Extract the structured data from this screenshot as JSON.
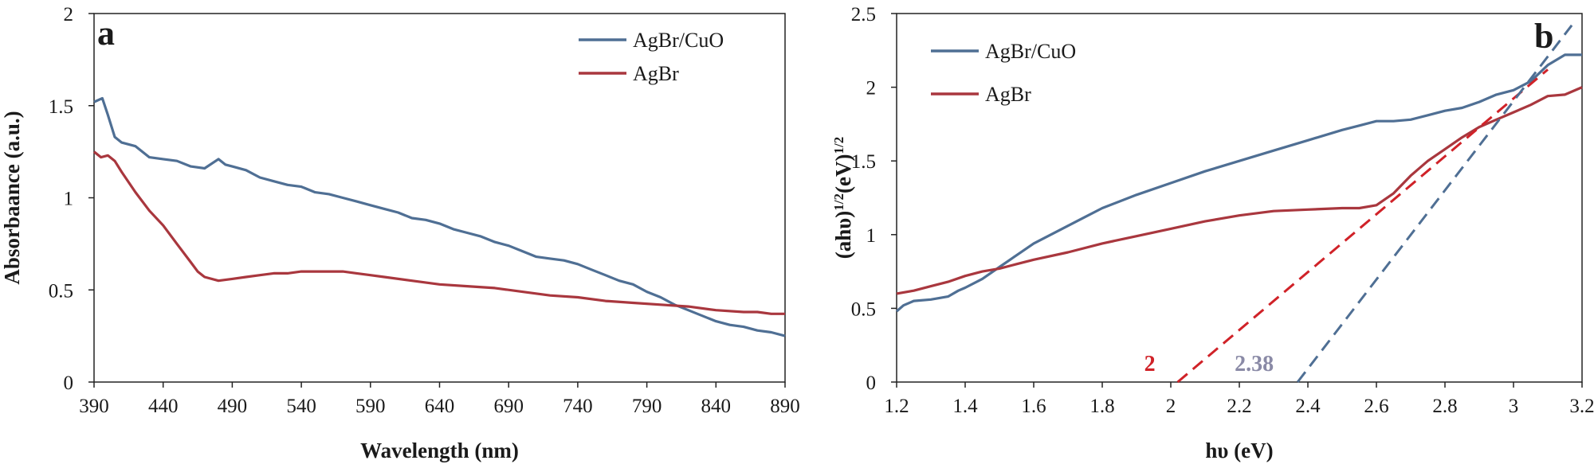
{
  "chart_data": [
    {
      "type": "line",
      "panel_label": "a",
      "xlabel": "Wavelength (nm)",
      "ylabel": "Absorbaance (a.u.)",
      "xlim": [
        390,
        890
      ],
      "ylim": [
        0,
        2
      ],
      "xticks": [
        "390",
        "440",
        "490",
        "540",
        "590",
        "640",
        "690",
        "740",
        "790",
        "840",
        "890"
      ],
      "yticks": [
        "0",
        "0.5",
        "1",
        "1.5",
        "2"
      ],
      "legend_position": "top-right",
      "series": [
        {
          "name": "AgBr/CuO",
          "color": "#4f6f94",
          "x": [
            390,
            396,
            400,
            405,
            410,
            420,
            430,
            440,
            450,
            460,
            470,
            480,
            485,
            490,
            500,
            510,
            520,
            530,
            540,
            550,
            560,
            570,
            580,
            590,
            600,
            610,
            620,
            630,
            640,
            650,
            660,
            670,
            680,
            690,
            700,
            710,
            720,
            730,
            740,
            750,
            760,
            770,
            780,
            790,
            800,
            810,
            820,
            830,
            840,
            850,
            860,
            870,
            880,
            890
          ],
          "y": [
            1.52,
            1.54,
            1.45,
            1.33,
            1.3,
            1.28,
            1.22,
            1.21,
            1.2,
            1.17,
            1.16,
            1.21,
            1.18,
            1.17,
            1.15,
            1.11,
            1.09,
            1.07,
            1.06,
            1.03,
            1.02,
            1.0,
            0.98,
            0.96,
            0.94,
            0.92,
            0.89,
            0.88,
            0.86,
            0.83,
            0.81,
            0.79,
            0.76,
            0.74,
            0.71,
            0.68,
            0.67,
            0.66,
            0.64,
            0.61,
            0.58,
            0.55,
            0.53,
            0.49,
            0.46,
            0.42,
            0.39,
            0.36,
            0.33,
            0.31,
            0.3,
            0.28,
            0.27,
            0.25
          ]
        },
        {
          "name": "AgBr",
          "color": "#a9373e",
          "x": [
            390,
            395,
            400,
            405,
            410,
            420,
            430,
            440,
            450,
            460,
            465,
            470,
            480,
            490,
            500,
            510,
            520,
            530,
            540,
            550,
            560,
            570,
            580,
            590,
            600,
            620,
            640,
            660,
            680,
            700,
            720,
            740,
            760,
            780,
            800,
            820,
            840,
            860,
            870,
            880,
            890
          ],
          "y": [
            1.25,
            1.22,
            1.23,
            1.2,
            1.14,
            1.03,
            0.93,
            0.85,
            0.75,
            0.65,
            0.6,
            0.57,
            0.55,
            0.56,
            0.57,
            0.58,
            0.59,
            0.59,
            0.6,
            0.6,
            0.6,
            0.6,
            0.59,
            0.58,
            0.57,
            0.55,
            0.53,
            0.52,
            0.51,
            0.49,
            0.47,
            0.46,
            0.44,
            0.43,
            0.42,
            0.41,
            0.39,
            0.38,
            0.38,
            0.37,
            0.37
          ]
        }
      ]
    },
    {
      "type": "line",
      "panel_label": "b",
      "xlabel": "hυ (eV)",
      "ylabel": "(ahυ)",
      "ylabel_sup1": "1/2",
      "ylabel_mid": "(eV)",
      "ylabel_sup2": "1/2",
      "xlim": [
        1.2,
        3.2
      ],
      "ylim": [
        0,
        2.5
      ],
      "xticks": [
        "1.2",
        "1.4",
        "1.6",
        "1.8",
        "2",
        "2.2",
        "2.4",
        "2.6",
        "2.8",
        "3",
        "3.2"
      ],
      "yticks": [
        "0",
        "0.5",
        "1",
        "1.5",
        "2",
        "2.5"
      ],
      "legend_position": "top-left",
      "series": [
        {
          "name": "AgBr/CuO",
          "color": "#4f6f94",
          "x": [
            1.2,
            1.22,
            1.25,
            1.3,
            1.35,
            1.38,
            1.4,
            1.45,
            1.5,
            1.55,
            1.6,
            1.65,
            1.7,
            1.75,
            1.8,
            1.9,
            2.0,
            2.1,
            2.2,
            2.3,
            2.4,
            2.5,
            2.55,
            2.6,
            2.65,
            2.7,
            2.75,
            2.8,
            2.85,
            2.9,
            2.95,
            3.0,
            3.05,
            3.1,
            3.15,
            3.2
          ],
          "y": [
            0.48,
            0.52,
            0.55,
            0.56,
            0.58,
            0.62,
            0.64,
            0.7,
            0.78,
            0.86,
            0.94,
            1.0,
            1.06,
            1.12,
            1.18,
            1.27,
            1.35,
            1.43,
            1.5,
            1.57,
            1.64,
            1.71,
            1.74,
            1.77,
            1.77,
            1.78,
            1.81,
            1.84,
            1.86,
            1.9,
            1.95,
            1.98,
            2.04,
            2.15,
            2.22,
            2.22
          ]
        },
        {
          "name": "AgBr",
          "color": "#a9373e",
          "x": [
            1.2,
            1.25,
            1.3,
            1.35,
            1.4,
            1.45,
            1.5,
            1.55,
            1.6,
            1.7,
            1.8,
            1.9,
            2.0,
            2.1,
            2.2,
            2.3,
            2.4,
            2.5,
            2.55,
            2.6,
            2.65,
            2.7,
            2.75,
            2.8,
            2.85,
            2.9,
            2.95,
            3.0,
            3.05,
            3.1,
            3.15,
            3.2
          ],
          "y": [
            0.6,
            0.62,
            0.65,
            0.68,
            0.72,
            0.75,
            0.77,
            0.8,
            0.83,
            0.88,
            0.94,
            0.99,
            1.04,
            1.09,
            1.13,
            1.16,
            1.17,
            1.18,
            1.18,
            1.2,
            1.28,
            1.4,
            1.5,
            1.58,
            1.66,
            1.73,
            1.78,
            1.83,
            1.88,
            1.94,
            1.95,
            2.0
          ]
        }
      ],
      "tangents": [
        {
          "label": "2",
          "color": "#d02228",
          "x_intercept": 2.02,
          "end": [
            3.1,
            2.12
          ]
        },
        {
          "label": "2.38",
          "color": "#4f6f94",
          "label_color": "#8a8aa6",
          "x_intercept": 2.37,
          "end": [
            3.17,
            2.42
          ]
        }
      ]
    }
  ]
}
